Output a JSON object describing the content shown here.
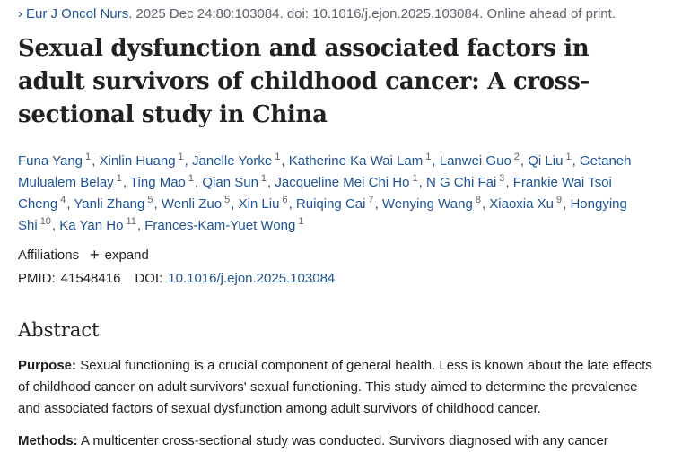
{
  "citation": {
    "journal": "Eur J Oncol Nurs.",
    "details": "2025 Dec 24:80:103084. doi: 10.1016/j.ejon.2025.103084. Online ahead of print."
  },
  "title": "Sexual dysfunction and associated factors in adult survivors of childhood cancer: A cross-sectional study in China",
  "authors": [
    {
      "name": "Funa Yang",
      "sup": "1"
    },
    {
      "name": "Xinlin Huang",
      "sup": "1"
    },
    {
      "name": "Janelle Yorke",
      "sup": "1"
    },
    {
      "name": "Katherine Ka Wai Lam",
      "sup": "1"
    },
    {
      "name": "Lanwei Guo",
      "sup": "2"
    },
    {
      "name": "Qi Liu",
      "sup": "1"
    },
    {
      "name": "Getaneh Mulualem Belay",
      "sup": "1"
    },
    {
      "name": "Ting Mao",
      "sup": "1"
    },
    {
      "name": "Qian Sun",
      "sup": "1"
    },
    {
      "name": "Jacqueline Mei Chi Ho",
      "sup": "1"
    },
    {
      "name": "N G Chi Fai",
      "sup": "3"
    },
    {
      "name": "Frankie Wai Tsoi Cheng",
      "sup": "4"
    },
    {
      "name": "Yanli Zhang",
      "sup": "5"
    },
    {
      "name": "Wenli Zuo",
      "sup": "5"
    },
    {
      "name": "Xin Liu",
      "sup": "6"
    },
    {
      "name": "Ruiqing Cai",
      "sup": "7"
    },
    {
      "name": "Wenying Wang",
      "sup": "8"
    },
    {
      "name": "Xiaoxia Xu",
      "sup": "9"
    },
    {
      "name": "Hongying Shi",
      "sup": "10"
    },
    {
      "name": "Ka Yan Ho",
      "sup": "11"
    },
    {
      "name": "Frances-Kam-Yuet Wong",
      "sup": "1"
    }
  ],
  "affiliations": {
    "label": "Affiliations",
    "expand": "expand"
  },
  "ids": {
    "pmid_label": "PMID:",
    "pmid": "41548416",
    "doi_label": "DOI:",
    "doi": "10.1016/j.ejon.2025.103084"
  },
  "abstract": {
    "heading": "Abstract",
    "sections": [
      {
        "label": "Purpose:",
        "text": "Sexual functioning is a crucial component of general health. Less is known about the late effects of childhood cancer on adult survivors' sexual functioning. This study aimed to determine the prevalence and associated factors of sexual dysfunction among adult survivors of childhood cancer."
      },
      {
        "label": "Methods:",
        "text": "A multicenter cross-sectional study was conducted. Survivors diagnosed with any cancer"
      }
    ]
  }
}
